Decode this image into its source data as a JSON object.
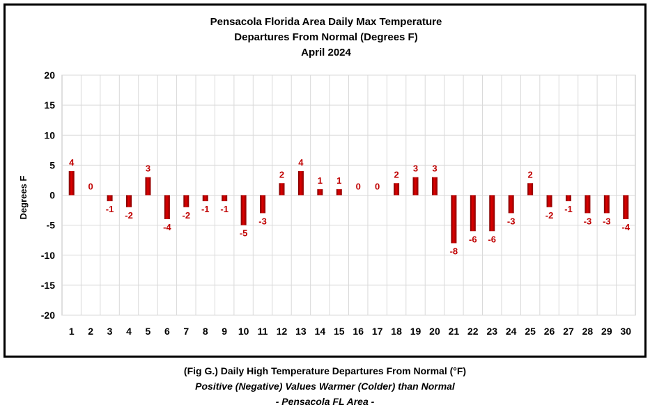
{
  "chart_data": {
    "type": "bar",
    "title": [
      "Pensacola Florida Area Daily Max Temperature",
      "Departures From Normal (Degrees F)",
      "April 2024"
    ],
    "xlabel": "",
    "ylabel": "Degrees F",
    "ylim": [
      -20,
      20
    ],
    "yticks": [
      20,
      15,
      10,
      5,
      0,
      -5,
      -10,
      -15,
      -20
    ],
    "categories": [
      "1",
      "2",
      "3",
      "4",
      "5",
      "6",
      "7",
      "8",
      "9",
      "10",
      "11",
      "12",
      "13",
      "14",
      "15",
      "16",
      "17",
      "18",
      "19",
      "20",
      "21",
      "22",
      "23",
      "24",
      "25",
      "26",
      "27",
      "28",
      "29",
      "30"
    ],
    "values": [
      4,
      0,
      -1,
      -2,
      3,
      -4,
      -2,
      -1,
      -1,
      -5,
      -3,
      2,
      4,
      1,
      1,
      0,
      0,
      2,
      3,
      3,
      -8,
      -6,
      -6,
      -3,
      2,
      -2,
      -1,
      -3,
      -3,
      -4
    ],
    "bar_color": "#c00000",
    "grid": true,
    "legend": "none"
  },
  "caption": {
    "line1": "(Fig G.) Daily High Temperature Departures From Normal (°F)",
    "line2": "Positive (Negative) Values Warmer (Colder) than Normal",
    "line3": "- Pensacola FL Area -"
  }
}
